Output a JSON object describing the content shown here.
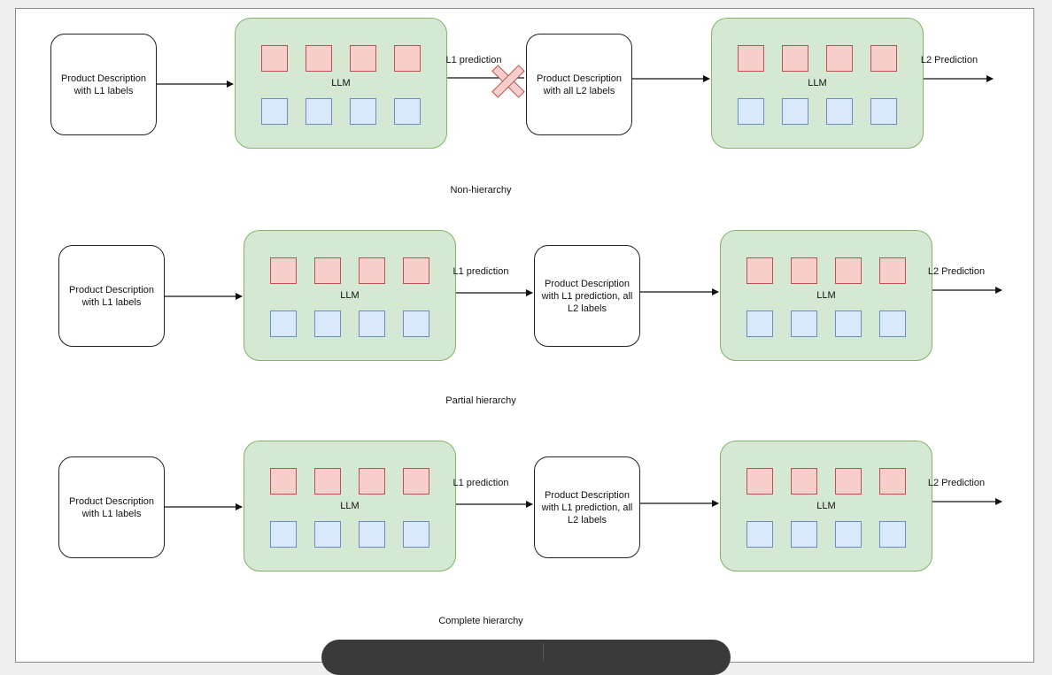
{
  "input_label": "Product Description with L1 labels",
  "llm_label": "LLM",
  "l1_edge_label": "L1 prediction",
  "l2_edge_label": "L2 Prediction",
  "rows": [
    {
      "second_input": "Product Description with all L2 labels",
      "caption": "Non-hierarchy",
      "l1_prediction_dropped": true
    },
    {
      "second_input": "Product Description with L1 prediction, all L2 labels",
      "caption": "Partial hierarchy",
      "l1_prediction_dropped": false
    },
    {
      "second_input": "Product Description with L1 prediction, all L2 labels",
      "caption": "Complete hierarchy",
      "l1_prediction_dropped": false
    }
  ],
  "colors": {
    "llm_fill": "#d5e8d4",
    "llm_stroke": "#82b366",
    "token_red": "#f8cecc",
    "token_blue": "#dae8fc",
    "cross": "#f8cecc"
  }
}
